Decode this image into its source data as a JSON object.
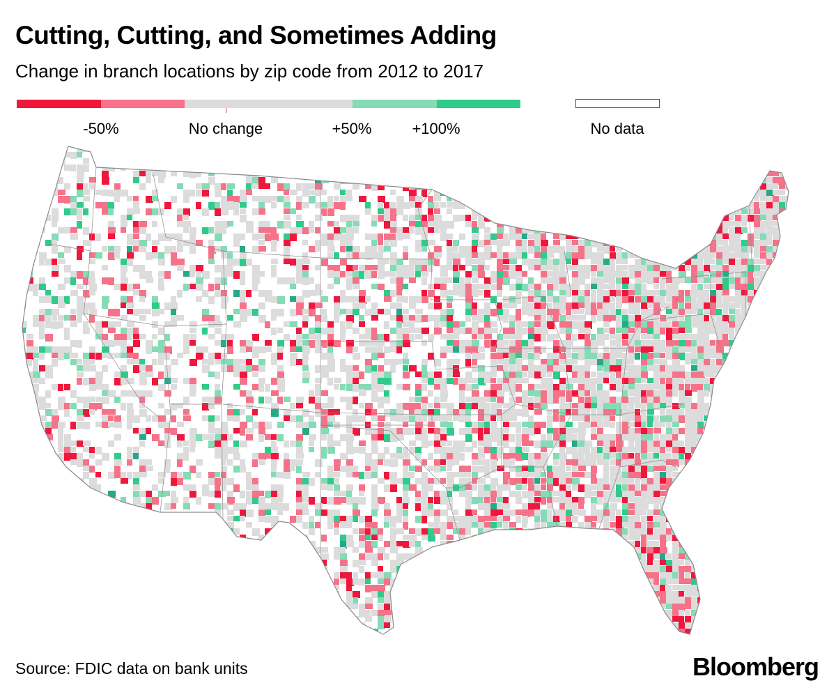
{
  "title": "Cutting, Cutting, and Sometimes Adding",
  "subtitle": "Change in branch locations by zip code from 2012 to 2017",
  "legend": {
    "colors": [
      "#f0173d",
      "#f67289",
      "#dcdcdc",
      "#dcdcdc",
      "#84dbb6",
      "#2fcb8b"
    ],
    "nodata_color": "#ffffff",
    "labels": {
      "minus50": "-50%",
      "nochange": "No change",
      "plus50": "+50%",
      "plus100": "+100%",
      "nodata": "No data"
    }
  },
  "map": {
    "region": "Contiguous United States",
    "fill_palette": {
      "strong_decrease": "#f0173d",
      "decrease": "#f67289",
      "no_change": "#dcdcdc",
      "increase": "#84dbb6",
      "strong_increase": "#2fcb8b",
      "max_increase": "#27a887",
      "no_data": "#ffffff"
    },
    "border_color": "#8a8a8a"
  },
  "source": "Source: FDIC data on bank units",
  "brand": "Bloomberg"
}
